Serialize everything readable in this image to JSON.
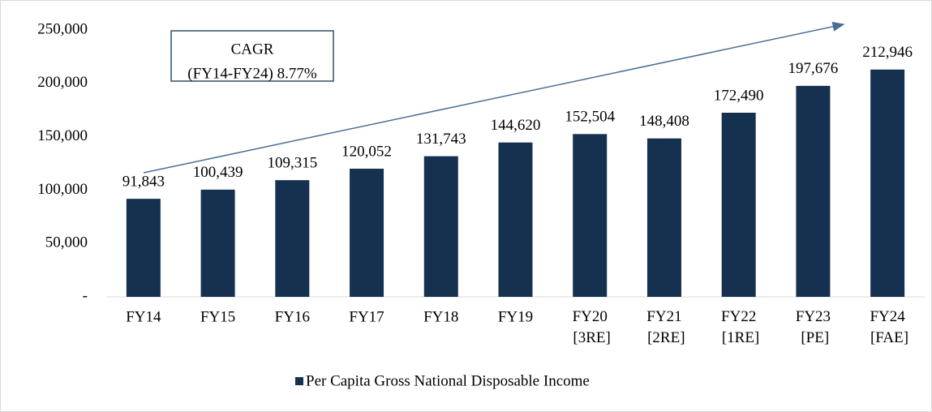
{
  "chart_data": {
    "type": "bar",
    "categories": [
      "FY14",
      "FY15",
      "FY16",
      "FY17",
      "FY18",
      "FY19",
      "FY20 [3RE]",
      "FY21 [2RE]",
      "FY22 [1RE]",
      "FY23 [PE]",
      "FY24 [FAE]"
    ],
    "series": [
      {
        "name": "Per Capita Gross National Disposable Income",
        "color": "#15314f",
        "values": [
          91843,
          100439,
          109315,
          120052,
          131743,
          144620,
          152504,
          148408,
          172490,
          197676,
          212946
        ],
        "value_labels": [
          "91,843",
          "100,439",
          "109,315",
          "120,052",
          "131,743",
          "144,620",
          "152,504",
          "148,408",
          "172,490",
          "197,676",
          "212,946"
        ]
      }
    ],
    "ylim": [
      0,
      250000
    ],
    "yticks": [
      {
        "value": 0,
        "label": "-"
      },
      {
        "value": 50000,
        "label": "50,000"
      },
      {
        "value": 100000,
        "label": "100,000"
      },
      {
        "value": 150000,
        "label": "150,000"
      },
      {
        "value": 200000,
        "label": "200,000"
      },
      {
        "value": 250000,
        "label": "250,000"
      }
    ],
    "annotation": {
      "title": "CAGR",
      "text": "(FY14-FY24) 8.77%"
    },
    "legend": "bottom"
  }
}
